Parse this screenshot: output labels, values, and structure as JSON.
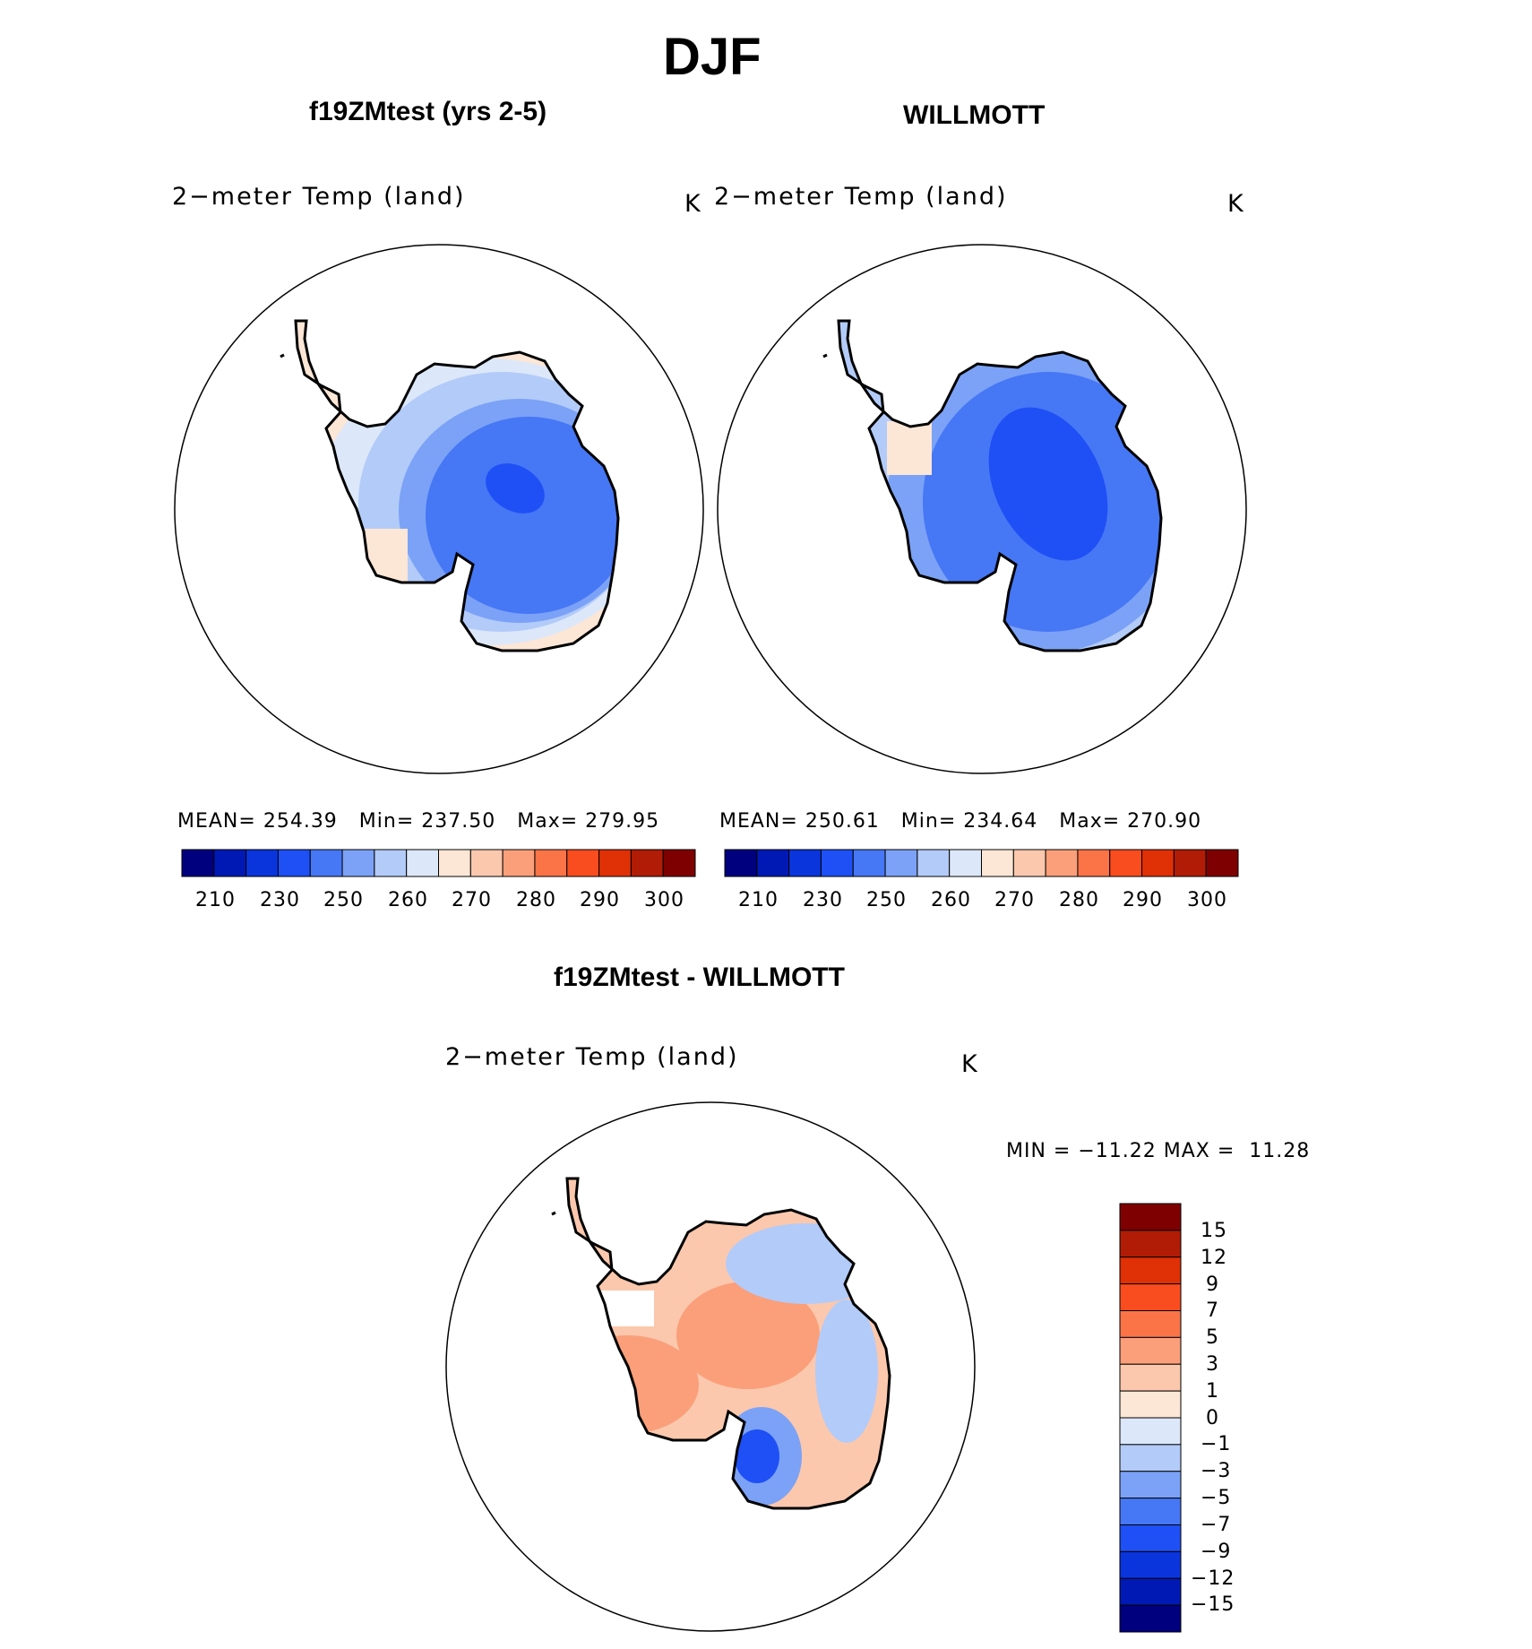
{
  "title": "DJF",
  "panels": [
    {
      "title": "f19ZMtest (yrs 2-5)",
      "variable": "2−meter Temp (land)",
      "units": "K",
      "stats": {
        "mean_label": "MEAN=",
        "mean": "254.39",
        "min_label": "Min=",
        "min": "237.50",
        "max_label": "Max=",
        "max": "279.95"
      },
      "colorbar_labels": [
        "210",
        "230",
        "250",
        "260",
        "270",
        "280",
        "290",
        "300"
      ]
    },
    {
      "title": "WILLMOTT",
      "variable": "2−meter Temp (land)",
      "units": "K",
      "stats": {
        "mean_label": "MEAN=",
        "mean": "250.61",
        "min_label": "Min=",
        "min": "234.64",
        "max_label": "Max=",
        "max": "270.90"
      },
      "colorbar_labels": [
        "210",
        "230",
        "250",
        "260",
        "270",
        "280",
        "290",
        "300"
      ]
    }
  ],
  "diff": {
    "title": "f19ZMtest - WILLMOTT",
    "variable": "2−meter Temp (land)",
    "units": "K",
    "minmax": "MIN = −11.22 MAX =  11.28",
    "colorbar_labels": [
      "15",
      "12",
      "9",
      "7",
      "5",
      "3",
      "1",
      "0",
      "−1",
      "−3",
      "−5",
      "−7",
      "−9",
      "−12",
      "−15"
    ]
  },
  "colors": {
    "abs_scale": [
      "#00007f",
      "#0019b4",
      "#0b35dc",
      "#1e50f5",
      "#4677f5",
      "#7ba2f6",
      "#b3cbf8",
      "#dce8fa",
      "#fce6d6",
      "#fbc8ad",
      "#fa9f7a",
      "#fa7447",
      "#f94d20",
      "#e03006",
      "#b11c06",
      "#7f0000"
    ],
    "diff_scale": [
      "#7f0000",
      "#b11c06",
      "#e03006",
      "#f94d20",
      "#fa7447",
      "#fa9f7a",
      "#fbc8ad",
      "#fce6d6",
      "#dce8fa",
      "#b3cbf8",
      "#7ba2f6",
      "#4677f5",
      "#1e50f5",
      "#0b35dc",
      "#0019b4",
      "#00007f"
    ]
  }
}
